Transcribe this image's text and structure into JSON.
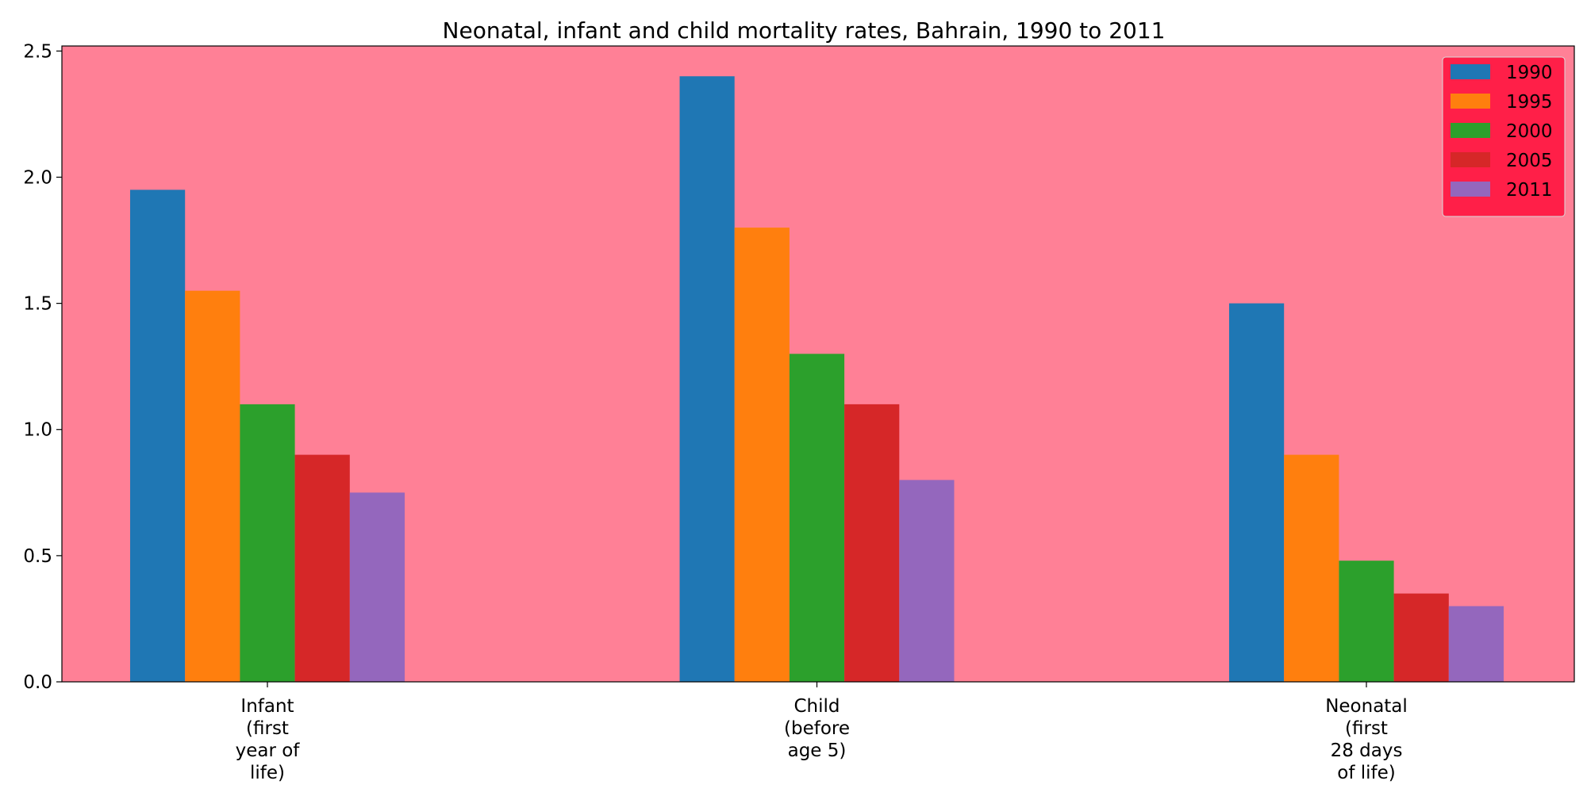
{
  "chart_data": {
    "type": "bar",
    "title": "Neonatal, infant and child mortality rates, Bahrain, 1990 to 2011",
    "xlabel": "",
    "ylabel": "",
    "categories": [
      [
        "Infant",
        "(first",
        "year of",
        "life)"
      ],
      [
        "Child",
        "(before",
        "age 5)"
      ],
      [
        "Neonatal",
        "(first",
        "28 days",
        "of life)"
      ]
    ],
    "series": [
      {
        "name": "1990",
        "values": [
          1.95,
          2.4,
          1.5
        ]
      },
      {
        "name": "1995",
        "values": [
          1.55,
          1.8,
          0.9
        ]
      },
      {
        "name": "2000",
        "values": [
          1.1,
          1.3,
          0.48
        ]
      },
      {
        "name": "2005",
        "values": [
          0.9,
          1.1,
          0.35
        ]
      },
      {
        "name": "2011",
        "values": [
          0.75,
          0.8,
          0.3
        ]
      }
    ],
    "ylim": [
      0,
      2.52
    ],
    "yticks": [
      "0.0",
      "0.5",
      "1.0",
      "1.5",
      "2.0",
      "2.5"
    ],
    "grid": false,
    "legend_position": "top-right"
  },
  "colors": {
    "plot_background": "#ff8096",
    "legend_background": "#ff1f48",
    "series": [
      "#1f77b4",
      "#ff7f0e",
      "#2ca02c",
      "#d62728",
      "#9467bd"
    ]
  }
}
